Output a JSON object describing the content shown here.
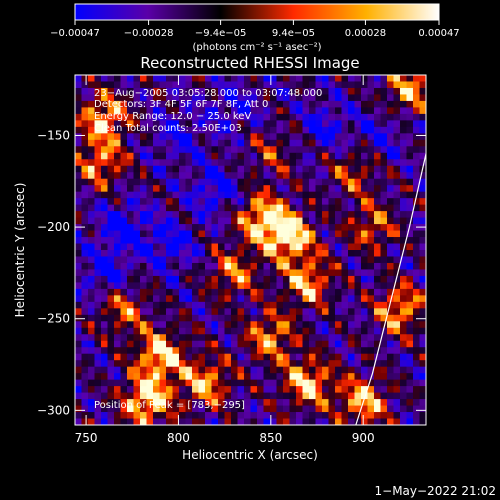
{
  "chart_data": {
    "type": "heatmap",
    "title": "Reconstructed RHESSI Image",
    "xlabel": "Heliocentric X (arcsec)",
    "ylabel": "Heliocentric Y (arcsec)",
    "xlim": [
      744,
      934
    ],
    "ylim": [
      -308,
      -117
    ],
    "x_ticks": [
      750,
      800,
      850,
      900
    ],
    "x_tick_labels": [
      "750",
      "800",
      "850",
      "900"
    ],
    "y_ticks": [
      -300,
      -250,
      -200,
      -150
    ],
    "y_tick_labels": [
      "−300",
      "−250",
      "−200",
      "−150"
    ],
    "colorbar": {
      "min": -0.00047,
      "max": 0.00047,
      "ticks": [
        -0.00047,
        -0.00028,
        -9.4e-05,
        9.4e-05,
        0.00028,
        0.00047
      ],
      "tick_labels": [
        "−0.00047",
        "−0.00028",
        "−9.4e−05",
        "9.4e−05",
        "0.00028",
        "0.00047"
      ],
      "unit_label": "(photons cm⁻² s⁻¹ asec⁻²)",
      "colors": [
        "#0000ff",
        "#5a00a8",
        "#000000",
        "#ff2a00",
        "#ffb000",
        "#ffffff"
      ]
    },
    "annotations": [
      "23−Aug−2005 03:05:28.000 to 03:07:48.000",
      "Detectors: 3F 4F 5F 6F 7F 8F, Att 0",
      "Energy Range: 12.0 − 25.0 keV",
      "Clean    Total counts: 2.50E+03"
    ],
    "peak_label": "Position of Peak = [783,−295]",
    "peak_position": [
      783,
      -295
    ],
    "limb_curve": [
      [
        896,
        -308
      ],
      [
        905,
        -280
      ],
      [
        915,
        -240
      ],
      [
        925,
        -200
      ],
      [
        934,
        -160
      ]
    ],
    "hot_spots": [
      {
        "x": 860,
        "y": -205,
        "level": 1.0
      },
      {
        "x": 845,
        "y": -195,
        "level": 0.9
      },
      {
        "x": 870,
        "y": -230,
        "level": 0.8
      },
      {
        "x": 850,
        "y": -260,
        "level": 0.75
      },
      {
        "x": 790,
        "y": -270,
        "level": 0.95
      },
      {
        "x": 783,
        "y": -295,
        "level": 1.0
      },
      {
        "x": 815,
        "y": -285,
        "level": 0.8
      },
      {
        "x": 870,
        "y": -285,
        "level": 0.9
      },
      {
        "x": 900,
        "y": -295,
        "level": 0.85
      },
      {
        "x": 920,
        "y": -245,
        "level": 0.8
      },
      {
        "x": 760,
        "y": -140,
        "level": 0.85
      },
      {
        "x": 758,
        "y": -165,
        "level": 0.7
      },
      {
        "x": 770,
        "y": -245,
        "level": 0.6
      },
      {
        "x": 830,
        "y": -225,
        "level": 0.65
      },
      {
        "x": 905,
        "y": -200,
        "level": 0.6
      },
      {
        "x": 925,
        "y": -125,
        "level": 0.75
      },
      {
        "x": 850,
        "y": -160,
        "level": 0.4
      },
      {
        "x": 895,
        "y": -170,
        "level": 0.5
      }
    ],
    "cold_spots": [
      {
        "x": 770,
        "y": -200,
        "level": -0.8
      },
      {
        "x": 795,
        "y": -210,
        "level": -0.7
      },
      {
        "x": 820,
        "y": -180,
        "level": -0.75
      },
      {
        "x": 800,
        "y": -150,
        "level": -0.6
      },
      {
        "x": 880,
        "y": -145,
        "level": -0.6
      },
      {
        "x": 830,
        "y": -135,
        "level": -0.55
      },
      {
        "x": 760,
        "y": -225,
        "level": -0.7
      },
      {
        "x": 910,
        "y": -150,
        "level": -0.5
      }
    ]
  },
  "footer": {
    "timestamp": "1−May−2022 21:02"
  }
}
